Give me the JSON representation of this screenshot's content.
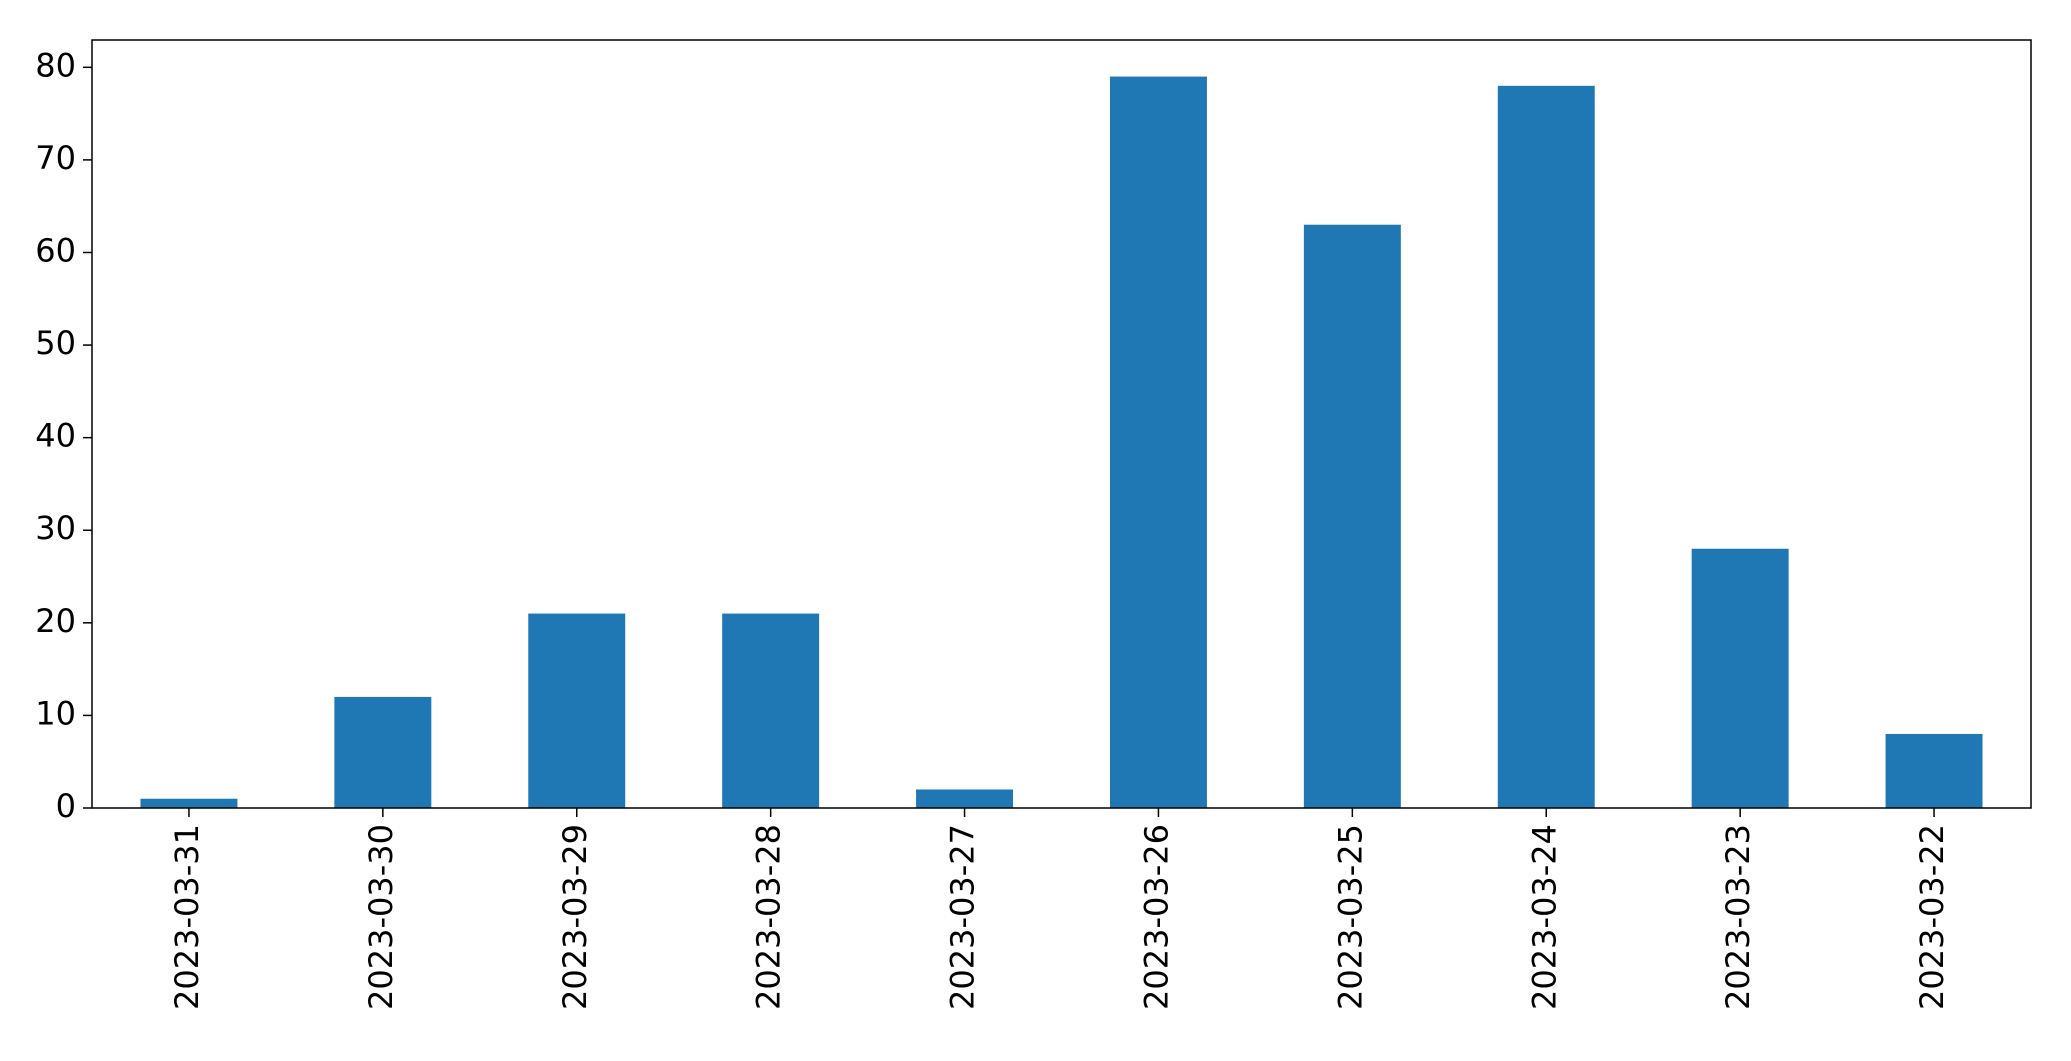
{
  "chart_data": {
    "type": "bar",
    "categories": [
      "2023-03-31",
      "2023-03-30",
      "2023-03-29",
      "2023-03-28",
      "2023-03-27",
      "2023-03-26",
      "2023-03-25",
      "2023-03-24",
      "2023-03-23",
      "2023-03-22"
    ],
    "values": [
      1,
      12,
      21,
      21,
      2,
      79,
      63,
      78,
      28,
      8
    ],
    "color": "#1f77b4",
    "ylim": [
      0,
      82.95
    ],
    "yticks": [
      0,
      10,
      20,
      30,
      40,
      50,
      60,
      70,
      80
    ],
    "grid": false
  }
}
